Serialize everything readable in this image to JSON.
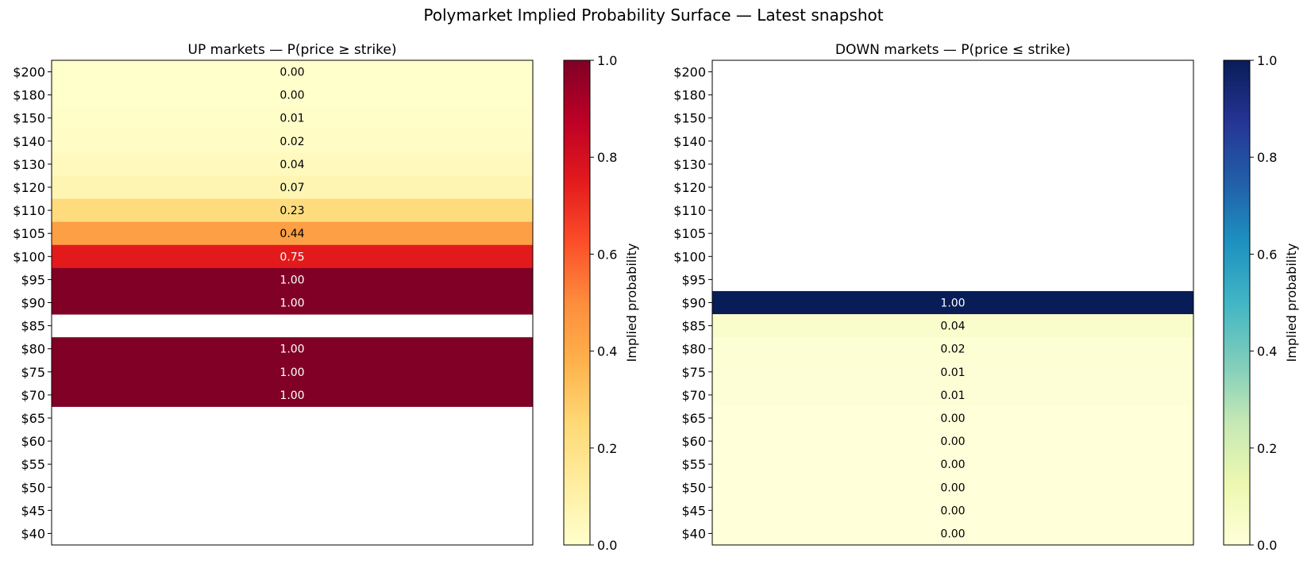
{
  "figure": {
    "title": "Polymarket Implied Probability Surface — Latest snapshot"
  },
  "chart_data": [
    {
      "type": "heatmap",
      "title": "UP markets — P(price ≥ strike)",
      "strikes": [
        "$200",
        "$180",
        "$150",
        "$140",
        "$130",
        "$120",
        "$110",
        "$105",
        "$100",
        "$95",
        "$90",
        "$85",
        "$80",
        "$75",
        "$70",
        "$65",
        "$60",
        "$55",
        "$50",
        "$45",
        "$40"
      ],
      "values": [
        0.0,
        0.0,
        0.01,
        0.02,
        0.04,
        0.07,
        0.23,
        0.44,
        0.75,
        1.0,
        1.0,
        null,
        1.0,
        1.0,
        1.0,
        null,
        null,
        null,
        null,
        null,
        null
      ],
      "value_labels": [
        "0.00",
        "0.00",
        "0.01",
        "0.02",
        "0.04",
        "0.07",
        "0.23",
        "0.44",
        "0.75",
        "1.00",
        "1.00",
        "",
        "1.00",
        "1.00",
        "1.00",
        "",
        "",
        "",
        "",
        "",
        ""
      ],
      "colormap": "YlOrRd",
      "colormap_stops": [
        "#ffffcc",
        "#ffeda0",
        "#fed976",
        "#feb24c",
        "#fd8d3c",
        "#fc4e2a",
        "#e31a1c",
        "#bd0026",
        "#800026"
      ],
      "colorbar": {
        "label": "Implied probability",
        "ticks": [
          "0.0",
          "0.2",
          "0.4",
          "0.6",
          "0.8",
          "1.0"
        ],
        "range": [
          0,
          1
        ]
      }
    },
    {
      "type": "heatmap",
      "title": "DOWN markets — P(price ≤ strike)",
      "strikes": [
        "$200",
        "$180",
        "$150",
        "$140",
        "$130",
        "$120",
        "$110",
        "$105",
        "$100",
        "$95",
        "$90",
        "$85",
        "$80",
        "$75",
        "$70",
        "$65",
        "$60",
        "$55",
        "$50",
        "$45",
        "$40"
      ],
      "values": [
        null,
        null,
        null,
        null,
        null,
        null,
        null,
        null,
        null,
        null,
        1.0,
        0.04,
        0.02,
        0.01,
        0.01,
        0.0,
        0.0,
        0.0,
        0.0,
        0.0,
        0.0
      ],
      "value_labels": [
        "",
        "",
        "",
        "",
        "",
        "",
        "",
        "",
        "",
        "",
        "1.00",
        "0.04",
        "0.02",
        "0.01",
        "0.01",
        "0.00",
        "0.00",
        "0.00",
        "0.00",
        "0.00",
        "0.00"
      ],
      "colormap": "YlGnBu",
      "colormap_stops": [
        "#ffffd9",
        "#edf8b1",
        "#c7e9b4",
        "#7fcdbb",
        "#41b6c4",
        "#1d91c0",
        "#225ea8",
        "#253494",
        "#081d58"
      ],
      "colorbar": {
        "label": "Implied probability",
        "ticks": [
          "0.0",
          "0.2",
          "0.4",
          "0.6",
          "0.8",
          "1.0"
        ],
        "range": [
          0,
          1
        ]
      }
    }
  ]
}
